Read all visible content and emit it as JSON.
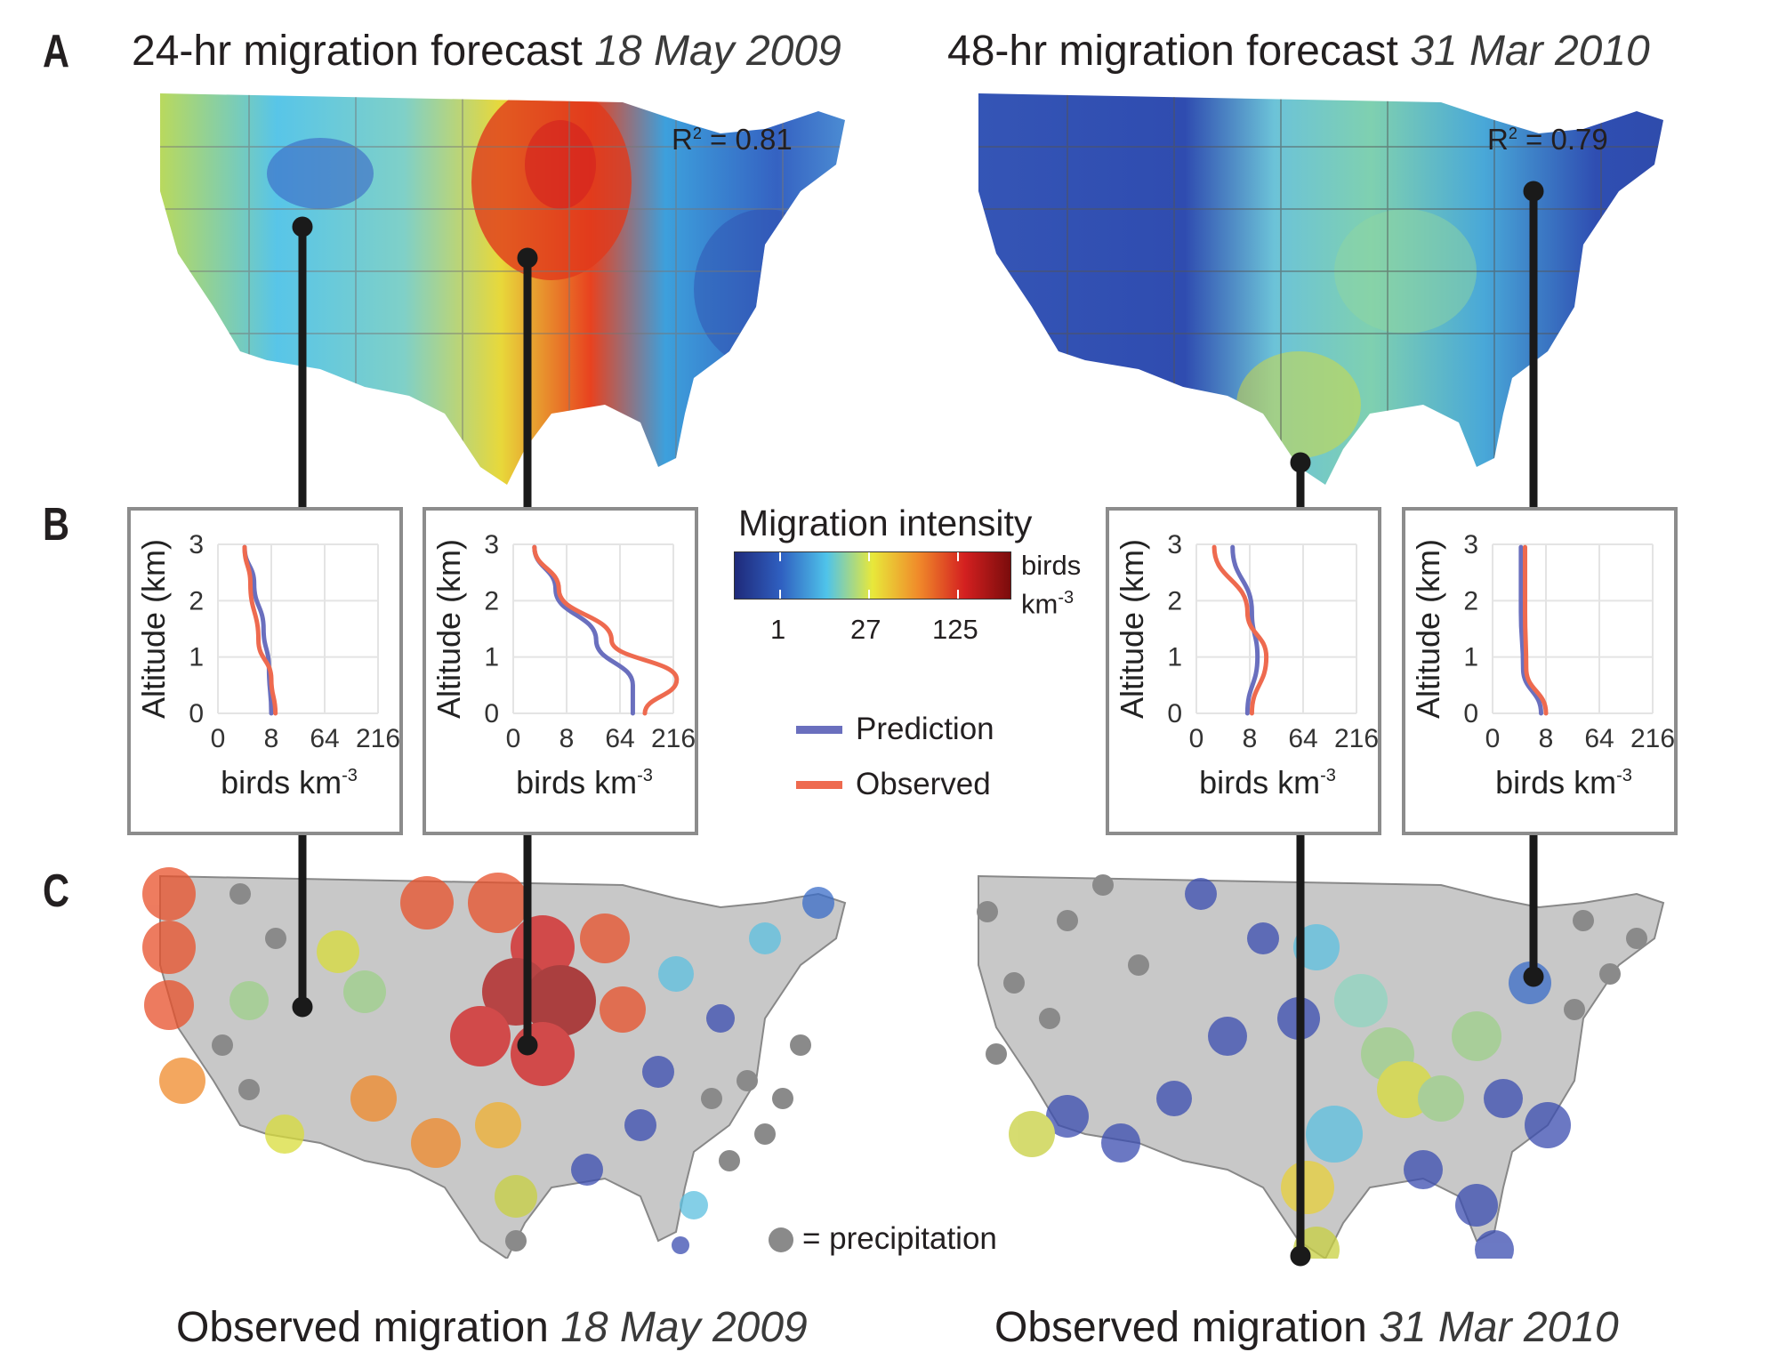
{
  "panel_labels": {
    "a": "A",
    "b": "B",
    "c": "C"
  },
  "forecast_left": {
    "title": "24-hr migration forecast",
    "date": "18 May 2009",
    "r2_label": "R",
    "r2_sup": "2",
    "r2_value": " = 0.81"
  },
  "forecast_right": {
    "title": "48-hr migration forecast",
    "date": "31 Mar 2010",
    "r2_label": "R",
    "r2_sup": "2",
    "r2_value": " = 0.79"
  },
  "legend": {
    "title": "Migration intensity",
    "ticks": [
      "1",
      "27",
      "125"
    ],
    "unit_line1": "birds",
    "unit_line2": "km",
    "unit_sup": "-3",
    "colors": [
      "#1f2a7a",
      "#2f5fc0",
      "#4fc3ea",
      "#e8e83a",
      "#f08a2a",
      "#d42020",
      "#7a0c0c"
    ]
  },
  "line_legend": {
    "prediction": "Prediction",
    "observed": "Observed",
    "prediction_color": "#6a6fbe",
    "observed_color": "#ee6a4f"
  },
  "precip_label": "= precipitation",
  "observed_left": {
    "title": "Observed migration",
    "date": "18 May 2009"
  },
  "observed_right": {
    "title": "Observed migration",
    "date": "31 Mar 2010"
  },
  "profile_axes": {
    "ylabel": "Altitude (km)",
    "xlabel": "birds km",
    "xlabel_sup": "-3",
    "yticks": [
      "0",
      "1",
      "2",
      "3"
    ],
    "xticks": [
      "0",
      "8",
      "64",
      "216"
    ]
  },
  "chart_data": [
    {
      "type": "line",
      "panel": "B1",
      "xscale": "cube-root",
      "ylim": [
        0,
        3
      ],
      "xticks": [
        0,
        8,
        64,
        216
      ],
      "series": [
        {
          "name": "Prediction",
          "x": [
            8,
            7,
            5,
            2.5,
            1
          ],
          "y": [
            0,
            0.8,
            1.5,
            2.3,
            2.95
          ]
        },
        {
          "name": "Observed",
          "x": [
            10,
            8,
            3.5,
            1.8,
            1
          ],
          "y": [
            0,
            0.6,
            1.3,
            2.3,
            2.95
          ]
        }
      ]
    },
    {
      "type": "line",
      "panel": "B2",
      "xscale": "cube-root",
      "ylim": [
        0,
        3
      ],
      "xticks": [
        0,
        8,
        64,
        216
      ],
      "series": [
        {
          "name": "Prediction",
          "x": [
            90,
            90,
            30,
            4,
            0.5
          ],
          "y": [
            0,
            0.5,
            1.3,
            2.2,
            2.95
          ]
        },
        {
          "name": "Observed",
          "x": [
            120,
            230,
            50,
            5,
            0.5
          ],
          "y": [
            0,
            0.6,
            1.3,
            2.2,
            2.95
          ]
        }
      ]
    },
    {
      "type": "line",
      "panel": "B3",
      "xscale": "cube-root",
      "ylim": [
        0,
        3
      ],
      "xticks": [
        0,
        8,
        64,
        216
      ],
      "series": [
        {
          "name": "Prediction",
          "x": [
            7,
            12,
            9,
            2.5
          ],
          "y": [
            0,
            1,
            1.8,
            2.95
          ]
        },
        {
          "name": "Observed",
          "x": [
            9,
            18,
            7,
            0.3
          ],
          "y": [
            0,
            1,
            1.8,
            2.95
          ]
        }
      ]
    },
    {
      "type": "line",
      "panel": "B4",
      "xscale": "cube-root",
      "ylim": [
        0,
        3
      ],
      "xticks": [
        0,
        8,
        64,
        216
      ],
      "series": [
        {
          "name": "Prediction",
          "x": [
            6,
            1.5,
            1.2,
            1.2
          ],
          "y": [
            0,
            0.8,
            1.8,
            2.95
          ]
        },
        {
          "name": "Observed",
          "x": [
            8,
            2,
            1.8,
            1.8
          ],
          "y": [
            0,
            0.8,
            1.8,
            2.95
          ]
        }
      ]
    }
  ]
}
